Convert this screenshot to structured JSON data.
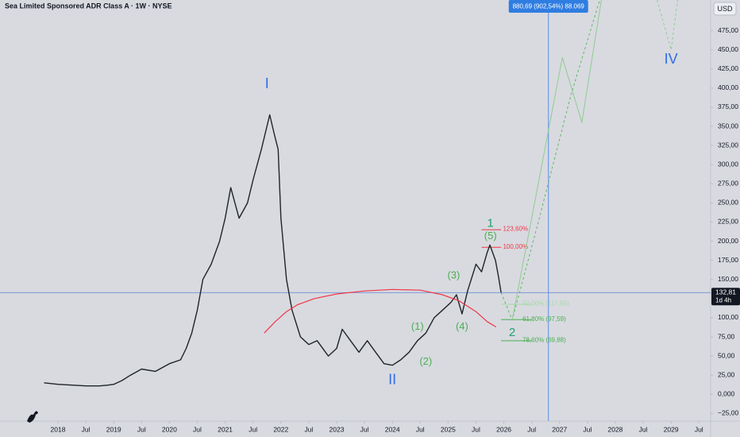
{
  "chart_data": {
    "type": "line",
    "title": "Sea Limited Sponsored ADR Class A · 1W · NYSE",
    "currency": "USD",
    "xlim": [
      2016.96,
      2029.71
    ],
    "ylim": [
      -35,
      515
    ],
    "grid": false,
    "xticks": [
      2018,
      {
        "value": 2018.5,
        "label": "Jul"
      },
      2019,
      {
        "value": 2019.5,
        "label": "Jul"
      },
      2020,
      {
        "value": 2020.5,
        "label": "Jul"
      },
      2021,
      {
        "value": 2021.5,
        "label": "Jul"
      },
      2022,
      {
        "value": 2022.5,
        "label": "Jul"
      },
      2023,
      {
        "value": 2023.5,
        "label": "Jul"
      },
      2024,
      {
        "value": 2024.5,
        "label": "Jul"
      },
      2025,
      {
        "value": 2025.5,
        "label": "Jul"
      },
      2026,
      {
        "value": 2026.5,
        "label": "Jul"
      },
      2027,
      {
        "value": 2027.5,
        "label": "Jul"
      },
      2028,
      {
        "value": 2028.5,
        "label": "Jul"
      },
      2029,
      {
        "value": 2029.5,
        "label": "Jul"
      }
    ],
    "yticks": [
      {
        "value": 475,
        "label": "475,00"
      },
      {
        "value": 450,
        "label": "450,00"
      },
      {
        "value": 425,
        "label": "425,00"
      },
      {
        "value": 400,
        "label": "400,00"
      },
      {
        "value": 375,
        "label": "375,00"
      },
      {
        "value": 350,
        "label": "350,00"
      },
      {
        "value": 325,
        "label": "325,00"
      },
      {
        "value": 300,
        "label": "300,00"
      },
      {
        "value": 275,
        "label": "275,00"
      },
      {
        "value": 250,
        "label": "250,00"
      },
      {
        "value": 225,
        "label": "225,00"
      },
      {
        "value": 200,
        "label": "200,00"
      },
      {
        "value": 175,
        "label": "175,00"
      },
      {
        "value": 150,
        "label": "150,00"
      },
      {
        "value": 100,
        "label": "100,00"
      },
      {
        "value": 75,
        "label": "75,00"
      },
      {
        "value": 50,
        "label": "50,00"
      },
      {
        "value": 25,
        "label": "25,00"
      },
      {
        "value": 0,
        "label": "0,000"
      },
      {
        "value": -25,
        "label": "−25,00"
      }
    ],
    "series": [
      {
        "color": "#1e2426",
        "width": 1.4,
        "dash": false,
        "x": [
          2017.75,
          2018.0,
          2018.25,
          2018.5,
          2018.75,
          2018.9,
          2019.0,
          2019.15,
          2019.3,
          2019.5,
          2019.75,
          2020.0,
          2020.2,
          2020.3,
          2020.4,
          2020.5,
          2020.6,
          2020.75,
          2020.9,
          2021.0,
          2021.1,
          2021.25,
          2021.4,
          2021.5,
          2021.65,
          2021.75,
          2021.8,
          2021.88,
          2021.95,
          2022.0,
          2022.1,
          2022.2,
          2022.35,
          2022.5,
          2022.65,
          2022.85,
          2023.0,
          2023.1,
          2023.25,
          2023.4,
          2023.55,
          2023.7,
          2023.85,
          2024.0,
          2024.15,
          2024.3,
          2024.45,
          2024.6,
          2024.75,
          2024.9,
          2025.05,
          2025.15,
          2025.25,
          2025.35,
          2025.5,
          2025.6,
          2025.7,
          2025.75,
          2025.85,
          2025.9,
          2025.95
        ],
        "values": [
          15,
          13,
          12,
          11,
          11,
          12,
          13,
          18,
          25,
          33,
          30,
          40,
          45,
          60,
          80,
          110,
          150,
          170,
          200,
          230,
          270,
          230,
          250,
          280,
          320,
          350,
          365,
          340,
          320,
          230,
          150,
          110,
          75,
          65,
          70,
          50,
          60,
          85,
          70,
          55,
          70,
          55,
          40,
          38,
          45,
          55,
          70,
          80,
          100,
          110,
          120,
          130,
          105,
          135,
          170,
          160,
          185,
          195,
          175,
          155,
          132.81
        ]
      },
      {
        "color": "#f23645",
        "width": 1.2,
        "dash": false,
        "x": [
          2021.7,
          2021.9,
          2022.1,
          2022.3,
          2022.6,
          2023.0,
          2023.5,
          2024.0,
          2024.5,
          2024.9,
          2025.2,
          2025.5,
          2025.7,
          2025.86
        ],
        "values": [
          80,
          95,
          108,
          117,
          125,
          131,
          135,
          137,
          136,
          130,
          122,
          108,
          95,
          88
        ]
      },
      {
        "color": "#5fb85f",
        "width": 1,
        "dash": true,
        "x": [
          2025.95,
          2026.15,
          2026.6,
          2027.2,
          2027.72
        ],
        "values": [
          132.81,
          97,
          220,
          390,
          515
        ]
      },
      {
        "color": "#8fcc8f",
        "width": 1,
        "dash": false,
        "x": [
          2026.15,
          2027.05,
          2027.4,
          2027.75
        ],
        "values": [
          97,
          440,
          355,
          515
        ]
      },
      {
        "color": "#8fcc8f",
        "width": 1,
        "dash": true,
        "x": [
          2028.75,
          2029.0,
          2029.12
        ],
        "values": [
          515,
          450,
          515
        ]
      }
    ],
    "annotations": [
      {
        "text": "I",
        "x": 2021.75,
        "y": 405,
        "color": "#2f6be8",
        "size": 18
      },
      {
        "text": "II",
        "x": 2024.0,
        "y": 18,
        "color": "#2f6be8",
        "size": 18
      },
      {
        "text": "IV",
        "x": 2029.0,
        "y": 437,
        "color": "#2f6be8",
        "size": 18
      },
      {
        "text": "1",
        "x": 2025.76,
        "y": 223,
        "color": "#22a06b",
        "size": 15
      },
      {
        "text": "(5)",
        "x": 2025.76,
        "y": 206,
        "color": "#4caf50",
        "size": 13
      },
      {
        "text": "(3)",
        "x": 2025.1,
        "y": 155,
        "color": "#4caf50",
        "size": 13
      },
      {
        "text": "(4)",
        "x": 2025.25,
        "y": 88,
        "color": "#4caf50",
        "size": 13
      },
      {
        "text": "(1)",
        "x": 2024.45,
        "y": 88,
        "color": "#4caf50",
        "size": 13
      },
      {
        "text": "(2)",
        "x": 2024.6,
        "y": 42,
        "color": "#4caf50",
        "size": 13
      },
      {
        "text": "2",
        "x": 2026.15,
        "y": 80,
        "color": "#22a06b",
        "size": 15
      }
    ],
    "fib_levels": [
      {
        "label": "123,60%",
        "value": 215,
        "x": [
          2025.6,
          2025.95
        ],
        "color": "#f23645"
      },
      {
        "label": "100,00%",
        "value": 192,
        "x": [
          2025.6,
          2025.95
        ],
        "color": "#f23645"
      },
      {
        "label": "50,00% (117,55)",
        "value": 117.55,
        "x": [
          2025.95,
          2026.5
        ],
        "color": "#a8d8a8"
      },
      {
        "label": "61,80% (97,59)",
        "value": 97.59,
        "x": [
          2025.95,
          2026.5
        ],
        "color": "#4caf50"
      },
      {
        "label": "78,60% (69,88)",
        "value": 69.88,
        "x": [
          2025.95,
          2026.5
        ],
        "color": "#4caf50"
      }
    ],
    "vline_x": 2026.8,
    "target_label": "880,69 (902,54%) 88.069",
    "last_price": {
      "value": 132.81,
      "label": "132,81"
    },
    "countdown": "1d 4h"
  }
}
